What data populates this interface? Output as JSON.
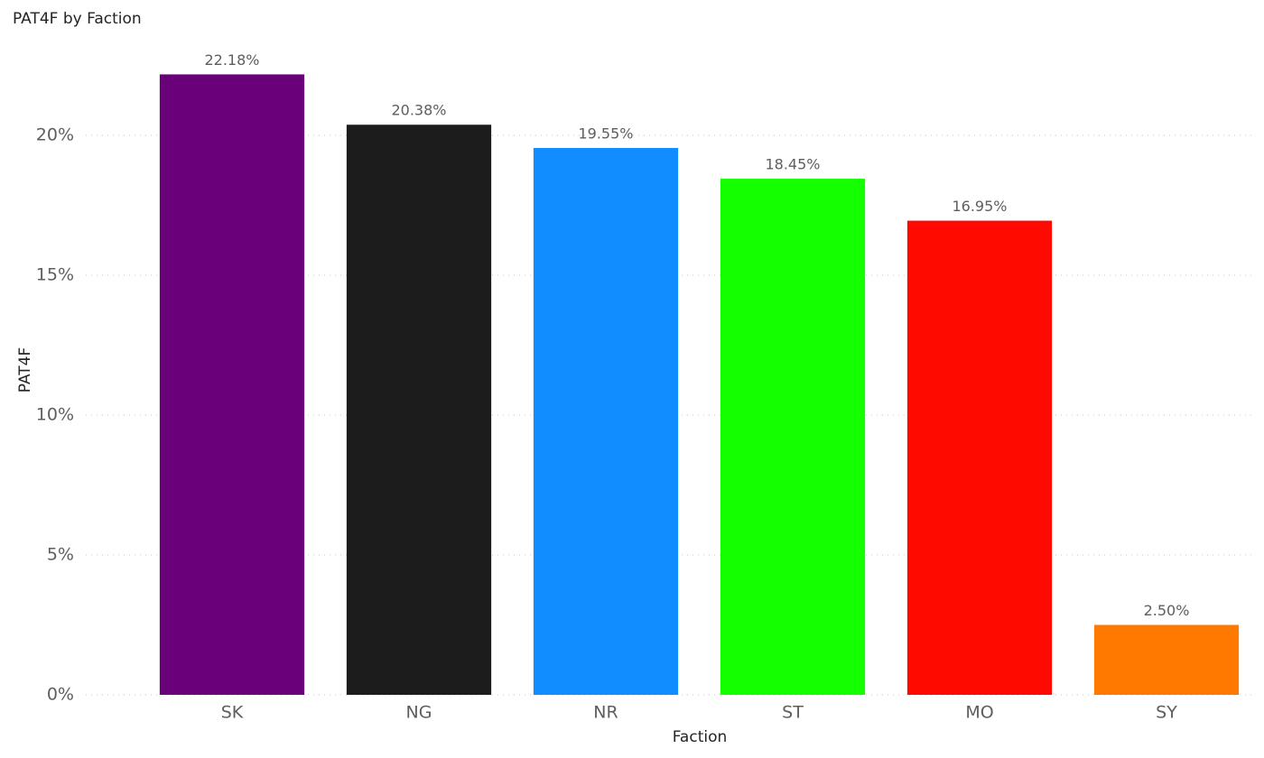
{
  "chart_data": {
    "type": "bar",
    "title": "PAT4F by Faction",
    "x_label": "Faction",
    "y_label": "PAT4F",
    "categories": [
      "SK",
      "NG",
      "NR",
      "ST",
      "MO",
      "SY"
    ],
    "values": [
      22.18,
      20.38,
      19.55,
      18.45,
      16.95,
      2.5
    ],
    "value_labels": [
      "22.18%",
      "20.38%",
      "19.55%",
      "18.45%",
      "16.95%",
      "2.50%"
    ],
    "colors": [
      "#6B007B",
      "#1C1C1C",
      "#118DFF",
      "#14FF00",
      "#FF0A00",
      "#FF7800"
    ],
    "ylim": [
      0,
      24
    ],
    "yticks": [
      {
        "value": 0,
        "label": "0%"
      },
      {
        "value": 5,
        "label": "5%"
      },
      {
        "value": 10,
        "label": "10%"
      },
      {
        "value": 15,
        "label": "15%"
      },
      {
        "value": 20,
        "label": "20%"
      }
    ],
    "grid": true
  }
}
